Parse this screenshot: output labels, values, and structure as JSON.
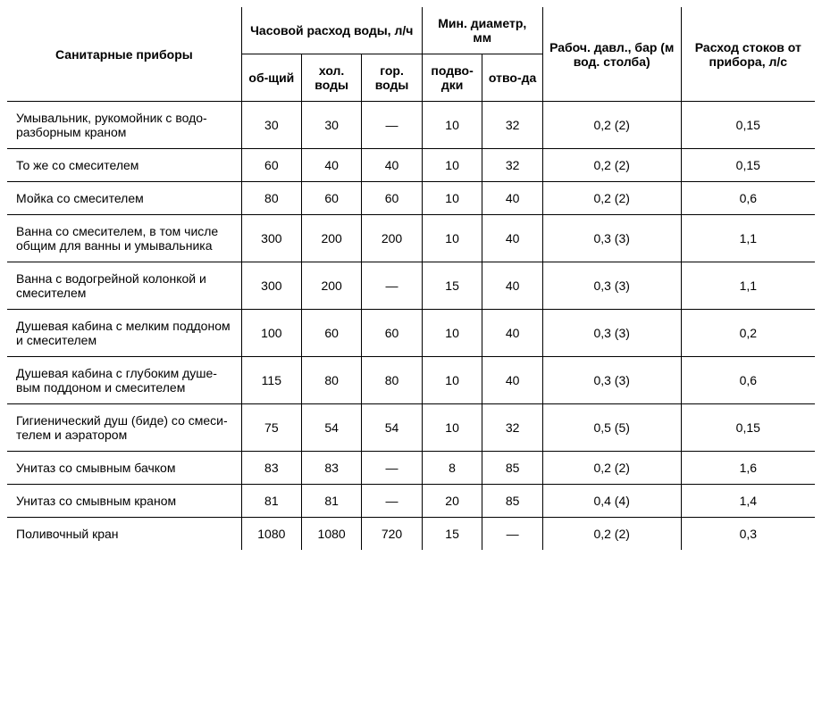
{
  "table": {
    "type": "table",
    "background_color": "#ffffff",
    "border_color": "#000000",
    "text_color": "#000000",
    "font_family": "Arial",
    "header_fontsize": 14,
    "body_fontsize": 14,
    "header": {
      "fixtures": "Санитарные приборы",
      "hourly_group": "Часовой расход воды, л/ч",
      "hourly_total": "об-щий",
      "hourly_cold": "хол. воды",
      "hourly_hot": "гор. воды",
      "diam_group": "Мин. диаметр, мм",
      "diam_supply": "подво-дки",
      "diam_outlet": "отво-да",
      "pressure": "Рабоч. давл., бар (м вод. столба)",
      "drain": "Расход стоков от прибора, л/с"
    },
    "rows": [
      {
        "fixture": "Умывальник, рукомойник с водо-разборным краном",
        "total": "30",
        "cold": "30",
        "hot": "—",
        "d_supply": "10",
        "d_outlet": "32",
        "pressure": "0,2 (2)",
        "drain": "0,15"
      },
      {
        "fixture": "То же со смесителем",
        "total": "60",
        "cold": "40",
        "hot": "40",
        "d_supply": "10",
        "d_outlet": "32",
        "pressure": "0,2 (2)",
        "drain": "0,15"
      },
      {
        "fixture": "Мойка со смесителем",
        "total": "80",
        "cold": "60",
        "hot": "60",
        "d_supply": "10",
        "d_outlet": "40",
        "pressure": "0,2 (2)",
        "drain": "0,6"
      },
      {
        "fixture": "Ванна со смесителем, в том числе общим для ванны и умывальника",
        "total": "300",
        "cold": "200",
        "hot": "200",
        "d_supply": "10",
        "d_outlet": "40",
        "pressure": "0,3 (3)",
        "drain": "1,1"
      },
      {
        "fixture": "Ванна с водогрейной колонкой и смесителем",
        "total": "300",
        "cold": "200",
        "hot": "—",
        "d_supply": "15",
        "d_outlet": "40",
        "pressure": "0,3 (3)",
        "drain": "1,1"
      },
      {
        "fixture": "Душевая кабина с мелким поддоном и смесителем",
        "total": "100",
        "cold": "60",
        "hot": "60",
        "d_supply": "10",
        "d_outlet": "40",
        "pressure": "0,3 (3)",
        "drain": "0,2"
      },
      {
        "fixture": "Душевая кабина с глубоким душе-вым поддоном и смесителем",
        "total": "115",
        "cold": "80",
        "hot": "80",
        "d_supply": "10",
        "d_outlet": "40",
        "pressure": "0,3 (3)",
        "drain": "0,6"
      },
      {
        "fixture": "Гигиенический душ (биде) со смеси-телем и аэратором",
        "total": "75",
        "cold": "54",
        "hot": "54",
        "d_supply": "10",
        "d_outlet": "32",
        "pressure": "0,5 (5)",
        "drain": "0,15"
      },
      {
        "fixture": "Унитаз со смывным бачком",
        "total": "83",
        "cold": "83",
        "hot": "—",
        "d_supply": "8",
        "d_outlet": "85",
        "pressure": "0,2 (2)",
        "drain": "1,6"
      },
      {
        "fixture": "Унитаз со смывным краном",
        "total": "81",
        "cold": "81",
        "hot": "—",
        "d_supply": "20",
        "d_outlet": "85",
        "pressure": "0,4 (4)",
        "drain": "1,4"
      },
      {
        "fixture": "Поливочный кран",
        "total": "1080",
        "cold": "1080",
        "hot": "720",
        "d_supply": "15",
        "d_outlet": "—",
        "pressure": "0,2 (2)",
        "drain": "0,3"
      }
    ]
  }
}
